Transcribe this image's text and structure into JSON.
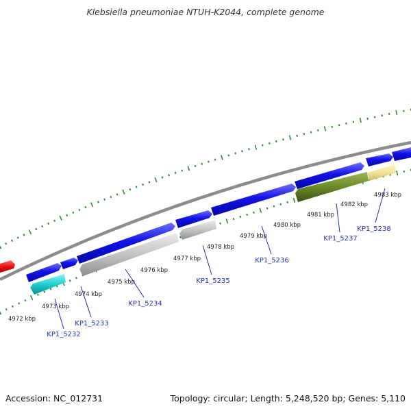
{
  "title": "Klebsiella pneumoniae NTUH-K2044, complete genome",
  "footer": {
    "accession": "Accession: NC_012731",
    "summary": "Topology: circular; Length: 5,248,520 bp; Genes: 5,110"
  },
  "colors": {
    "forward_gene": "#1010e0",
    "reverse_grey": "#c8c8c8",
    "cyan": "#20d0d0",
    "olive": "#6e8c2a",
    "pale_yellow": "#f2e49a",
    "red": "#ee1010",
    "ticks": "#2e8b2e",
    "backbone": "#8c8c8c"
  },
  "kbp_labels": [
    "4972 kbp",
    "4973 kbp",
    "4974 kbp",
    "4975 kbp",
    "4976 kbp",
    "4977 kbp",
    "4978 kbp",
    "4979 kbp",
    "4980 kbp",
    "4981 kbp",
    "4982 kbp",
    "4983 kbp"
  ],
  "gene_labels": [
    "KP1_5232",
    "KP1_5233",
    "KP1_5234",
    "KP1_5235",
    "KP1_5236",
    "KP1_5237",
    "KP1_5238"
  ]
}
